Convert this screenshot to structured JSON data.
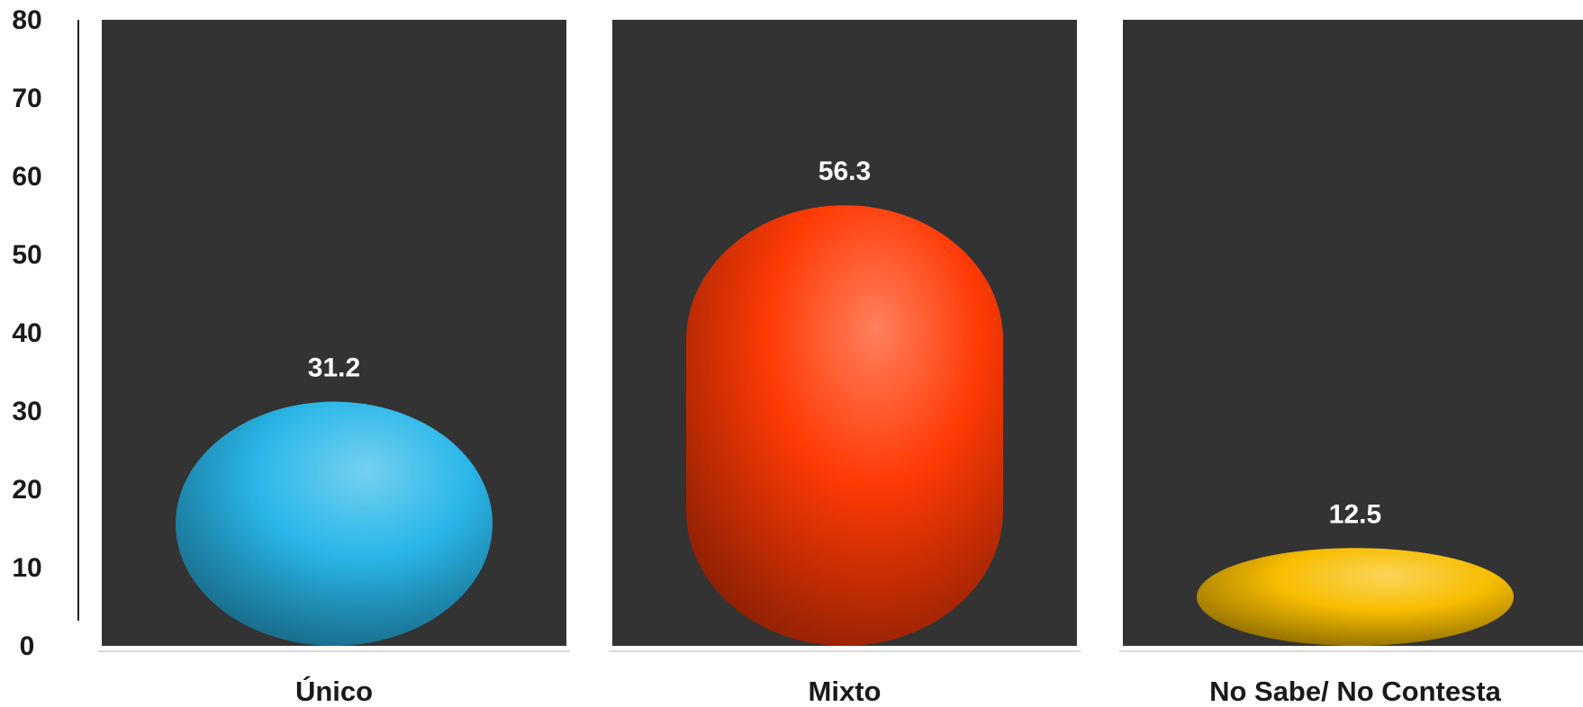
{
  "chart_data": {
    "type": "bar",
    "title": "",
    "xlabel": "",
    "ylabel": "",
    "ylim": [
      0,
      80
    ],
    "yticks": [
      0,
      10,
      20,
      30,
      40,
      50,
      60,
      70,
      80
    ],
    "grid": false,
    "legend": "none",
    "categories": [
      "Único",
      "Mixto",
      "No Sabe/ No Contesta"
    ],
    "values": [
      31.2,
      56.3,
      12.5
    ],
    "data_labels": [
      "31.2",
      "56.3",
      "12.5"
    ],
    "colors": [
      "#29b6e8",
      "#ff3a05",
      "#f7bd00"
    ],
    "panel_background": "#333333"
  }
}
